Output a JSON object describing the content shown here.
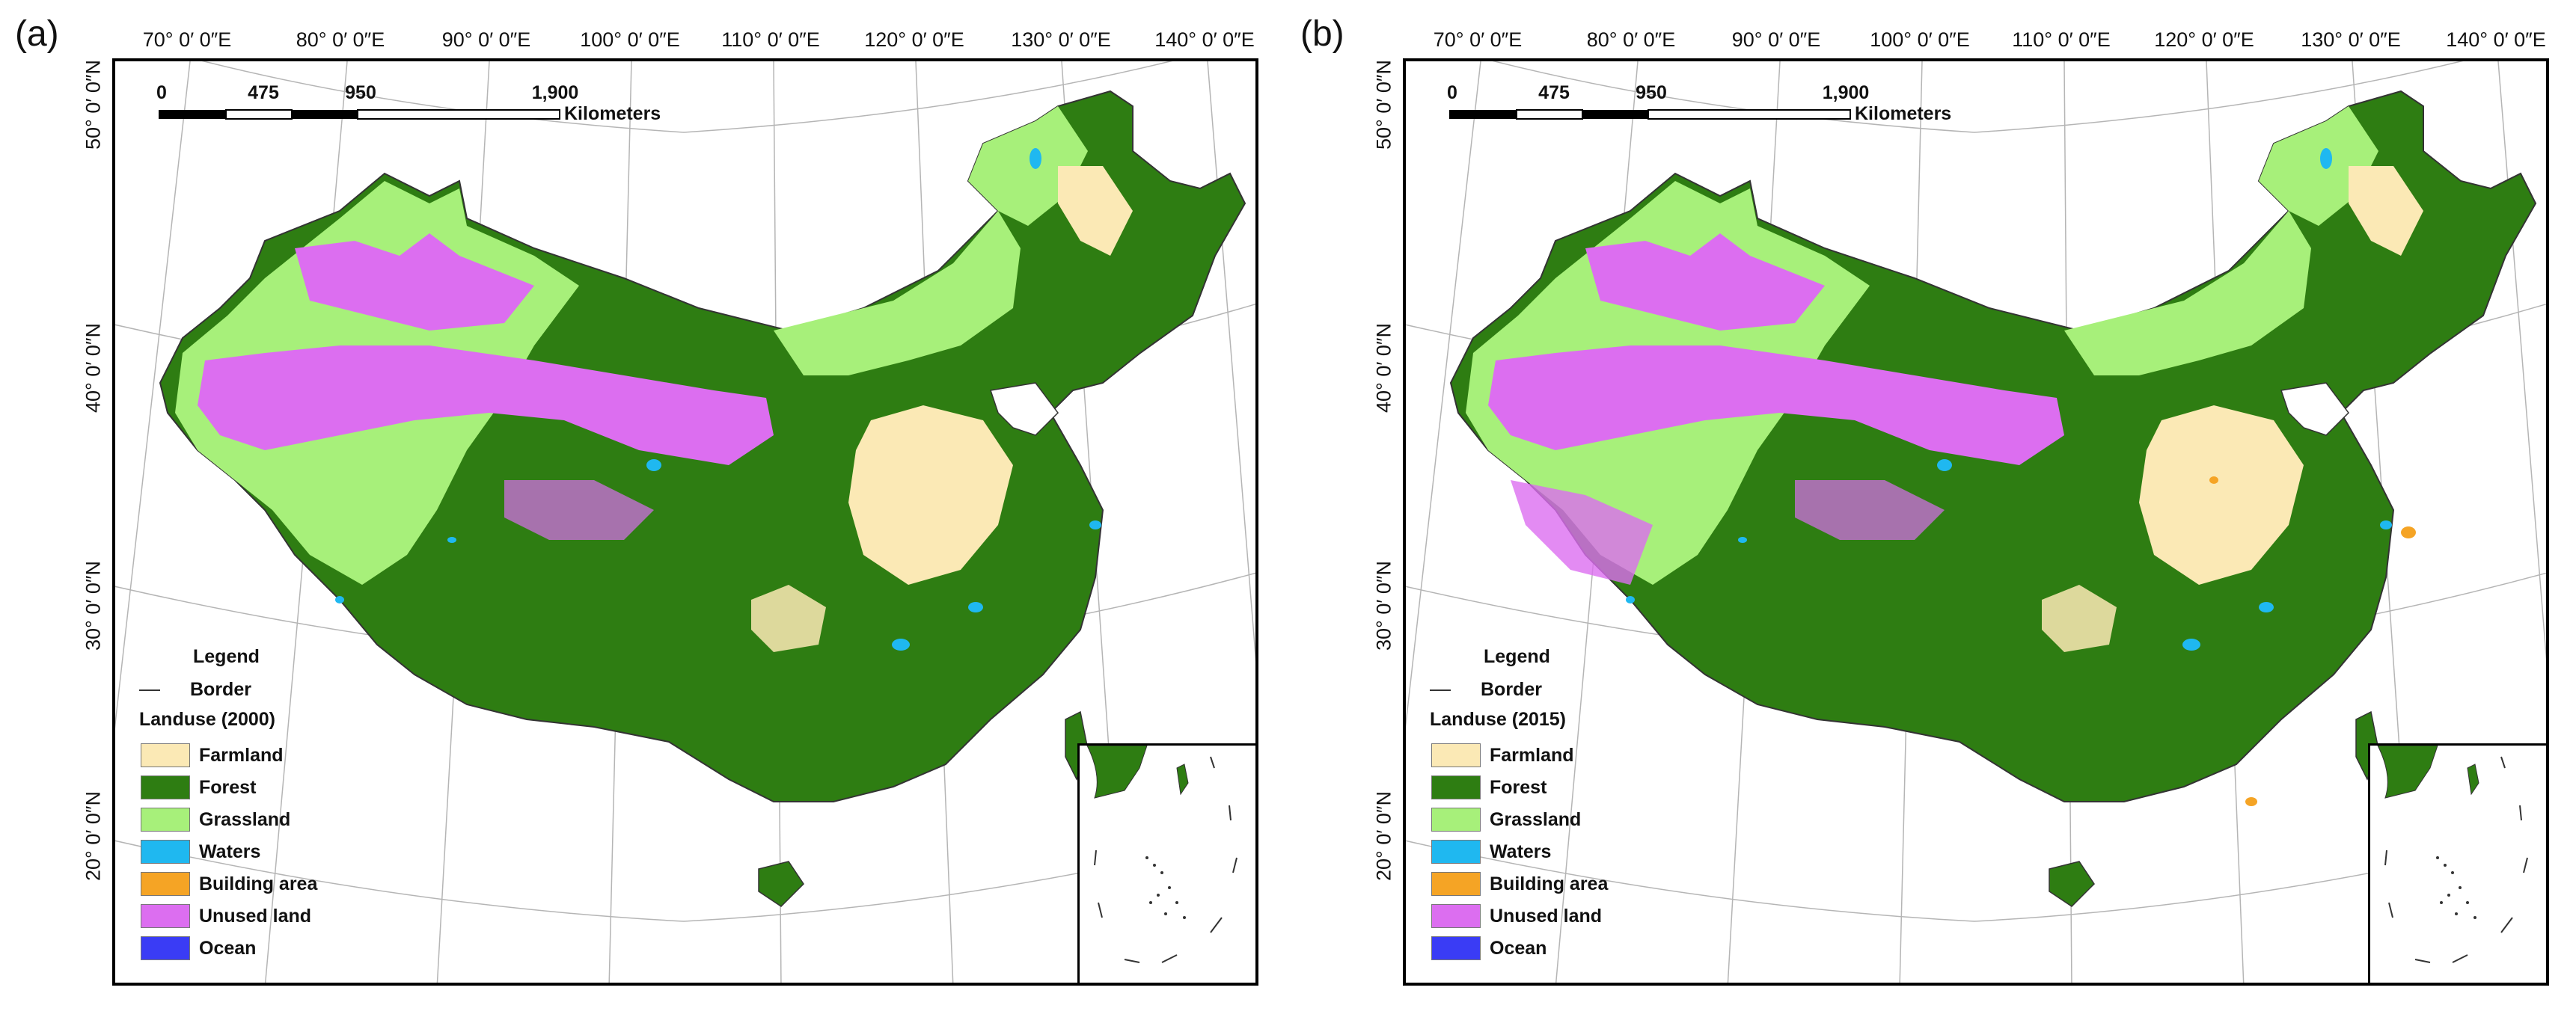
{
  "panels": [
    {
      "label": "(a)",
      "lon_labels": [
        "70° 0′ 0″E",
        "80° 0′ 0″E",
        "90° 0′ 0″E",
        "100° 0′ 0″E",
        "110° 0′ 0″E",
        "120° 0′ 0″E",
        "130° 0′ 0″E",
        "140° 0′ 0″E"
      ],
      "lat_labels": [
        "50° 0′ 0″N",
        "40° 0′ 0″N",
        "30° 0′ 0″N",
        "20° 0′ 0″N"
      ],
      "scale": {
        "ticks": [
          "0",
          "475",
          "950",
          "1,900"
        ],
        "unit": "Kilometers"
      },
      "legend": {
        "title": "Legend",
        "border_label": "Border",
        "landuse_title": "Landuse (2000)",
        "items": [
          {
            "label": "Farmland",
            "color": "#fbe9b5"
          },
          {
            "label": "Forest",
            "color": "#2e7d12"
          },
          {
            "label": "Grassland",
            "color": "#a7f07a"
          },
          {
            "label": "Waters",
            "color": "#1fb8f0"
          },
          {
            "label": "Building area",
            "color": "#f5a425"
          },
          {
            "label": "Unused land",
            "color": "#dc6ef0"
          },
          {
            "label": "Ocean",
            "color": "#3a3cf5"
          }
        ]
      }
    },
    {
      "label": "(b)",
      "lon_labels": [
        "70° 0′ 0″E",
        "80° 0′ 0″E",
        "90° 0′ 0″E",
        "100° 0′ 0″E",
        "110° 0′ 0″E",
        "120° 0′ 0″E",
        "130° 0′ 0″E",
        "140° 0′ 0″E"
      ],
      "lat_labels": [
        "50° 0′ 0″N",
        "40° 0′ 0″N",
        "30° 0′ 0″N",
        "20° 0′ 0″N"
      ],
      "scale": {
        "ticks": [
          "0",
          "475",
          "950",
          "1,900"
        ],
        "unit": "Kilometers"
      },
      "legend": {
        "title": "Legend",
        "border_label": "Border",
        "landuse_title": "Landuse (2015)",
        "items": [
          {
            "label": "Farmland",
            "color": "#fbe9b5"
          },
          {
            "label": "Forest",
            "color": "#2e7d12"
          },
          {
            "label": "Grassland",
            "color": "#a7f07a"
          },
          {
            "label": "Waters",
            "color": "#1fb8f0"
          },
          {
            "label": "Building area",
            "color": "#f5a425"
          },
          {
            "label": "Unused land",
            "color": "#dc6ef0"
          },
          {
            "label": "Ocean",
            "color": "#3a3cf5"
          }
        ]
      }
    }
  ]
}
